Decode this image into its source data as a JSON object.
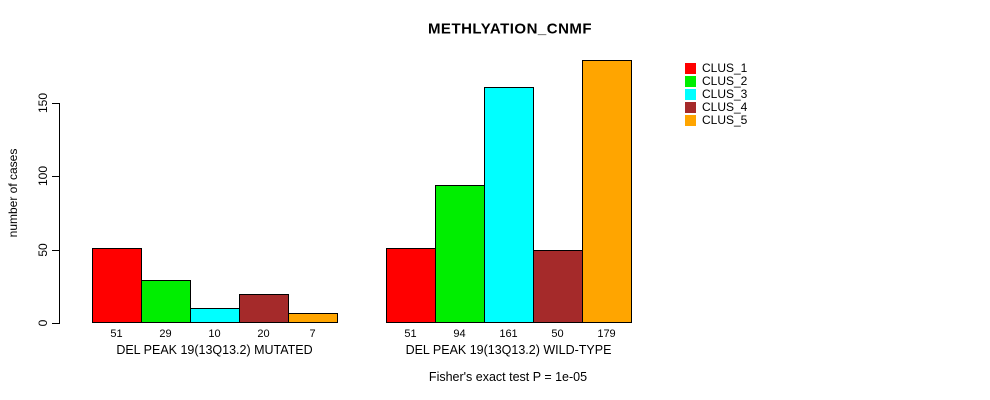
{
  "chart_data": {
    "type": "bar",
    "title": "METHLYATION_CNMF",
    "xlabel": "",
    "ylabel": "number of cases",
    "ylim": [
      0,
      180
    ],
    "yticks": [
      0,
      50,
      100,
      150
    ],
    "grid": false,
    "legend_position": "right",
    "categories": [
      "DEL PEAK 19(13Q13.2) MUTATED",
      "DEL PEAK 19(13Q13.2) WILD-TYPE"
    ],
    "series": [
      {
        "name": "CLUS_1",
        "color": "#FF0000",
        "values": [
          51,
          51
        ]
      },
      {
        "name": "CLUS_2",
        "color": "#00EE00",
        "values": [
          29,
          94
        ]
      },
      {
        "name": "CLUS_3",
        "color": "#00FFFF",
        "values": [
          10,
          161
        ]
      },
      {
        "name": "CLUS_4",
        "color": "#A52A2A",
        "values": [
          20,
          50
        ]
      },
      {
        "name": "CLUS_5",
        "color": "#FFA500",
        "values": [
          7,
          179
        ]
      }
    ],
    "bar_value_labels": [
      [
        51,
        29,
        10,
        20,
        7
      ],
      [
        51,
        94,
        161,
        50,
        179
      ]
    ],
    "annotation": "Fisher's exact test P = 1e-05"
  }
}
